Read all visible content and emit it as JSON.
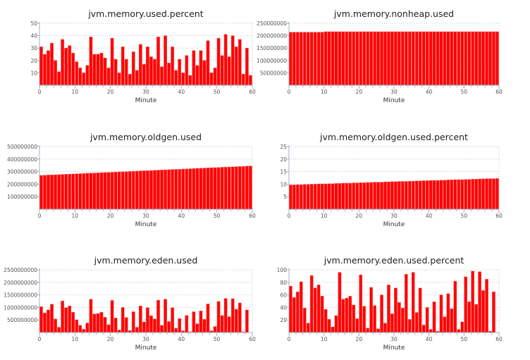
{
  "chart_data": [
    {
      "type": "bar",
      "title": "jvm.memory.used.percent",
      "xlabel": "Minute",
      "ylabel": "",
      "xlim": [
        0,
        60
      ],
      "ylim": [
        0,
        50
      ],
      "xticks": [
        0,
        10,
        20,
        30,
        40,
        50,
        60
      ],
      "yticks": [
        10,
        20,
        30,
        40,
        50
      ],
      "ytick_labels": [
        "10",
        "20",
        "30",
        "40",
        "50"
      ],
      "grid": true,
      "color": "#ff0000",
      "values": [
        31,
        25,
        28,
        34,
        20,
        11,
        37,
        30,
        32,
        26,
        19,
        14,
        10,
        16,
        39,
        25,
        25,
        26,
        22,
        14,
        38,
        21,
        10,
        31,
        21,
        9,
        27,
        12,
        33,
        17,
        31,
        23,
        21,
        39,
        15,
        40,
        18,
        31,
        12,
        21,
        10,
        24,
        8,
        28,
        16,
        28,
        20,
        36,
        10,
        14,
        38,
        24,
        41,
        23,
        40,
        31,
        37,
        9,
        30,
        8
      ]
    },
    {
      "type": "bar",
      "title": "jvm.memory.nonheap.used",
      "xlabel": "Minute",
      "ylabel": "",
      "xlim": [
        0,
        60
      ],
      "ylim": [
        0,
        250000000
      ],
      "xticks": [
        0,
        10,
        20,
        30,
        40,
        50,
        60
      ],
      "yticks": [
        50000000,
        100000000,
        150000000,
        200000000,
        250000000
      ],
      "ytick_labels": [
        "50000000",
        "100000000",
        "150000000",
        "200000000",
        "250000000"
      ],
      "grid": true,
      "color": "#ff0000",
      "values": [
        214000000,
        214000000,
        214000000,
        214000000,
        214000000,
        214000000,
        214000000,
        214000000,
        214000000,
        214000000,
        216000000,
        216000000,
        216000000,
        216000000,
        216000000,
        216000000,
        216000000,
        216000000,
        216000000,
        216000000,
        216000000,
        216000000,
        216000000,
        216000000,
        216000000,
        216000000,
        216000000,
        216000000,
        216000000,
        216000000,
        216000000,
        216000000,
        216000000,
        216000000,
        216000000,
        216000000,
        216000000,
        216000000,
        216000000,
        216000000,
        216000000,
        216000000,
        216000000,
        216000000,
        216000000,
        216000000,
        216000000,
        216000000,
        216000000,
        216000000,
        216000000,
        216000000,
        216000000,
        216000000,
        216000000,
        216000000,
        216000000,
        216000000,
        216000000,
        216000000
      ]
    },
    {
      "type": "bar",
      "title": "jvm.memory.oldgen.used",
      "xlabel": "Minute",
      "ylabel": "",
      "xlim": [
        0,
        60
      ],
      "ylim": [
        0,
        500000000
      ],
      "xticks": [
        0,
        10,
        20,
        30,
        40,
        50,
        60
      ],
      "yticks": [
        100000000,
        200000000,
        300000000,
        400000000,
        500000000
      ],
      "ytick_labels": [
        "100000000",
        "200000000",
        "300000000",
        "400000000",
        "500000000"
      ],
      "grid": true,
      "color": "#ff0000",
      "values": [
        270000000,
        271000000,
        273000000,
        274000000,
        275000000,
        276000000,
        278000000,
        279000000,
        280000000,
        281000000,
        283000000,
        284000000,
        285000000,
        287000000,
        288000000,
        289000000,
        290000000,
        292000000,
        293000000,
        294000000,
        295000000,
        297000000,
        298000000,
        299000000,
        300000000,
        302000000,
        303000000,
        304000000,
        306000000,
        307000000,
        308000000,
        309000000,
        311000000,
        312000000,
        313000000,
        314000000,
        316000000,
        317000000,
        318000000,
        319000000,
        321000000,
        322000000,
        323000000,
        325000000,
        326000000,
        327000000,
        328000000,
        330000000,
        331000000,
        332000000,
        333000000,
        335000000,
        336000000,
        337000000,
        338000000,
        340000000,
        341000000,
        342000000,
        344000000,
        345000000
      ]
    },
    {
      "type": "bar",
      "title": "jvm.memory.oldgen.used.percent",
      "xlabel": "Minute",
      "ylabel": "",
      "xlim": [
        0,
        60
      ],
      "ylim": [
        0,
        25
      ],
      "xticks": [
        0,
        10,
        20,
        30,
        40,
        50,
        60
      ],
      "yticks": [
        5,
        10,
        15,
        20,
        25
      ],
      "ytick_labels": [
        "5",
        "10",
        "15",
        "20",
        "25"
      ],
      "grid": true,
      "color": "#ff0000",
      "values": [
        9.7,
        9.7,
        9.8,
        9.8,
        9.9,
        9.9,
        10.0,
        10.0,
        10.1,
        10.1,
        10.1,
        10.2,
        10.2,
        10.3,
        10.3,
        10.4,
        10.4,
        10.4,
        10.5,
        10.5,
        10.6,
        10.6,
        10.7,
        10.7,
        10.8,
        10.8,
        10.8,
        10.9,
        10.9,
        11.0,
        11.0,
        11.1,
        11.1,
        11.1,
        11.2,
        11.2,
        11.3,
        11.3,
        11.4,
        11.4,
        11.5,
        11.5,
        11.5,
        11.6,
        11.6,
        11.7,
        11.7,
        11.8,
        11.8,
        11.8,
        11.9,
        11.9,
        12.0,
        12.0,
        12.1,
        12.1,
        12.2,
        12.2,
        12.2,
        12.3
      ]
    },
    {
      "type": "bar",
      "title": "jvm.memory.eden.used",
      "xlabel": "Minute",
      "ylabel": "",
      "xlim": [
        0,
        60
      ],
      "ylim": [
        0,
        2500000000
      ],
      "xticks": [
        0,
        10,
        20,
        30,
        40,
        50,
        60
      ],
      "yticks": [
        500000000,
        1000000000,
        1500000000,
        2000000000,
        2500000000
      ],
      "ytick_labels": [
        "500000000",
        "1000000000",
        "1500000000",
        "2000000000",
        "2500000000"
      ],
      "grid": true,
      "color": "#ff0000",
      "values": [
        1030000000,
        780000000,
        900000000,
        1130000000,
        540000000,
        210000000,
        1260000000,
        990000000,
        1060000000,
        810000000,
        510000000,
        290000000,
        130000000,
        380000000,
        1330000000,
        740000000,
        760000000,
        810000000,
        610000000,
        310000000,
        1280000000,
        580000000,
        100000000,
        1000000000,
        600000000,
        80000000,
        830000000,
        210000000,
        1060000000,
        420000000,
        990000000,
        670000000,
        540000000,
        1290000000,
        290000000,
        1330000000,
        440000000,
        990000000,
        170000000,
        560000000,
        70000000,
        680000000,
        30000000,
        830000000,
        350000000,
        860000000,
        530000000,
        1140000000,
        70000000,
        240000000,
        1240000000,
        680000000,
        1360000000,
        630000000,
        1350000000,
        930000000,
        1180000000,
        30000000,
        900000000,
        0
      ]
    },
    {
      "type": "bar",
      "title": "jvm.memory.eden.used.percent",
      "xlabel": "Minute",
      "ylabel": "",
      "xlim": [
        0,
        60
      ],
      "ylim": [
        0,
        100
      ],
      "xticks": [
        0,
        10,
        20,
        30,
        40,
        50,
        60
      ],
      "yticks": [
        20,
        40,
        60,
        80,
        100
      ],
      "ytick_labels": [
        "20",
        "40",
        "60",
        "80",
        "100"
      ],
      "grid": true,
      "color": "#ff0000",
      "values": [
        74,
        56,
        65,
        81,
        39,
        15,
        91,
        71,
        76,
        58,
        37,
        21,
        9,
        27,
        96,
        53,
        55,
        58,
        44,
        22,
        92,
        42,
        7,
        72,
        43,
        6,
        60,
        15,
        76,
        30,
        71,
        48,
        39,
        93,
        21,
        96,
        32,
        71,
        12,
        40,
        5,
        49,
        2,
        60,
        25,
        62,
        38,
        82,
        5,
        17,
        89,
        49,
        98,
        45,
        97,
        67,
        85,
        2,
        65,
        0
      ]
    }
  ]
}
